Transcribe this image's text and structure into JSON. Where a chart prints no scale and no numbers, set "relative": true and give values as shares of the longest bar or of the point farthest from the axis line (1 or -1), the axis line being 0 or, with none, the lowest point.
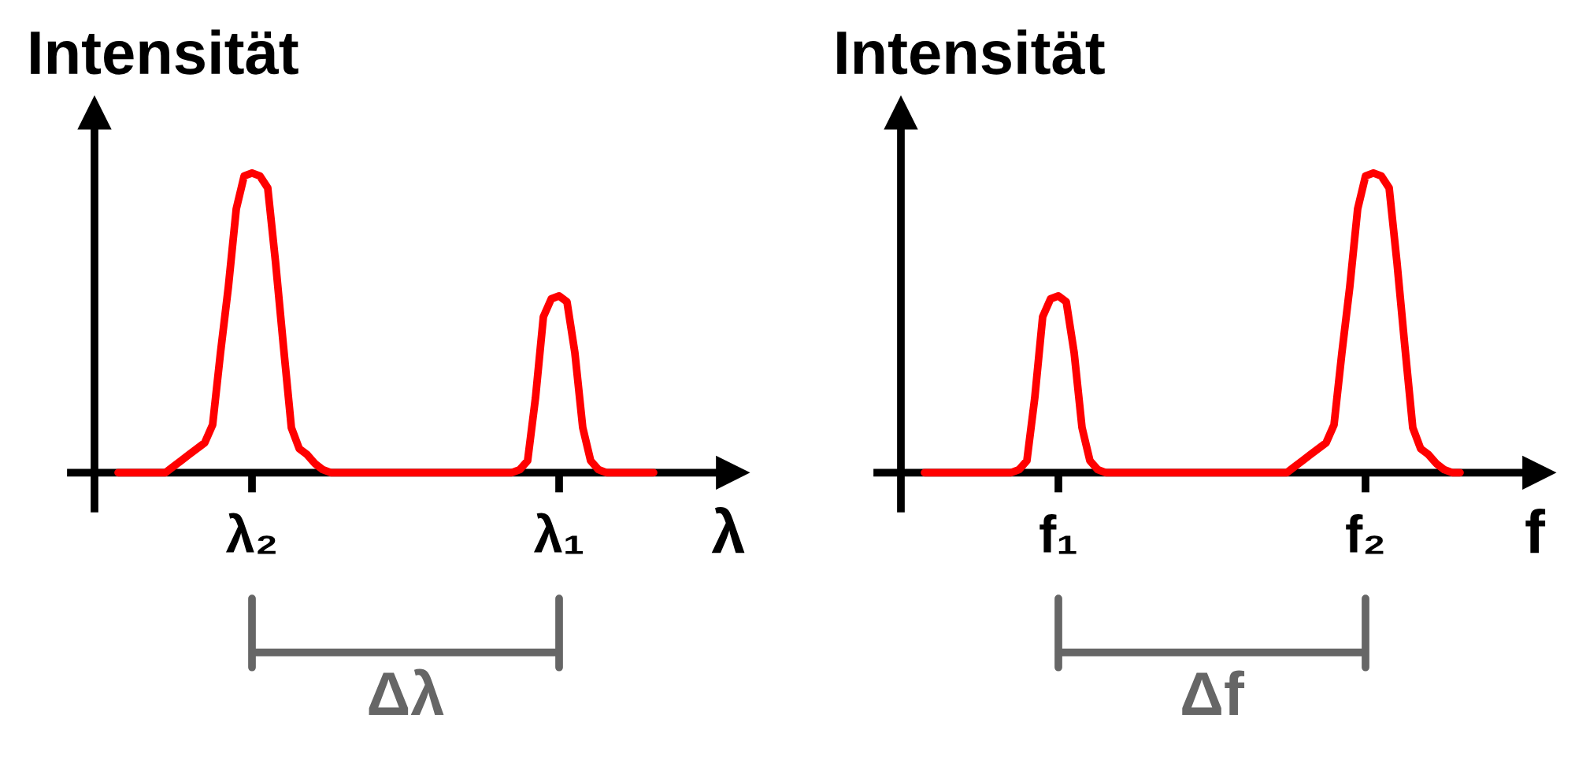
{
  "chart_data": [
    {
      "type": "line",
      "relative": true,
      "xlabel": "λ",
      "ylabel": "Intensität",
      "annotations": [
        "Δλ"
      ],
      "categories": [
        null,
        null,
        null,
        null,
        null,
        null,
        null,
        null,
        null,
        null,
        null,
        null,
        null,
        null,
        null,
        null,
        null,
        "λ₂",
        null,
        null,
        null,
        null,
        null,
        null,
        null,
        null,
        null,
        null,
        null,
        null,
        null,
        null,
        null,
        null,
        null,
        null,
        null,
        null,
        null,
        null,
        null,
        null,
        null,
        null,
        null,
        null,
        null,
        null,
        null,
        null,
        null,
        null,
        null,
        null,
        null,
        null,
        "λ₁",
        null,
        null,
        null,
        null,
        null,
        null,
        null,
        null,
        null,
        null,
        null,
        null
      ],
      "series": [
        {
          "color": "#ff0000",
          "values": [
            0,
            0,
            0,
            0,
            0,
            0,
            0,
            0.02,
            0.04,
            0.06,
            0.08,
            0.1,
            0.16,
            0.4,
            0.62,
            0.88,
            0.99,
            1,
            0.99,
            0.95,
            0.7,
            0.42,
            0.15,
            0.08,
            0.06,
            0.03,
            0.01,
            0,
            0,
            0,
            0,
            0,
            0,
            0,
            0,
            0,
            0,
            0,
            0,
            0,
            0,
            0,
            0,
            0,
            0,
            0,
            0,
            0,
            0,
            0,
            0,
            0.01,
            0.04,
            0.25,
            0.52,
            0.58,
            0.59,
            0.57,
            0.4,
            0.15,
            0.04,
            0.01,
            0,
            0,
            0,
            0,
            0,
            0,
            0
          ]
        }
      ]
    },
    {
      "type": "line",
      "relative": true,
      "xlabel": "f",
      "ylabel": "Intensität",
      "annotations": [
        "Δf"
      ],
      "categories": [
        null,
        null,
        null,
        null,
        null,
        null,
        null,
        null,
        null,
        null,
        null,
        null,
        null,
        null,
        null,
        null,
        null,
        "f₁",
        null,
        null,
        null,
        null,
        null,
        null,
        null,
        null,
        null,
        null,
        null,
        null,
        null,
        null,
        null,
        null,
        null,
        null,
        null,
        null,
        null,
        null,
        null,
        null,
        null,
        null,
        null,
        null,
        null,
        null,
        null,
        null,
        null,
        null,
        null,
        null,
        null,
        null,
        "f₂",
        null,
        null,
        null,
        null,
        null,
        null,
        null,
        null,
        null,
        null,
        null,
        null
      ],
      "series": [
        {
          "color": "#ff0000",
          "values": [
            0,
            0,
            0,
            0,
            0,
            0,
            0,
            0,
            0,
            0,
            0,
            0,
            0.01,
            0.04,
            0.25,
            0.52,
            0.58,
            0.59,
            0.57,
            0.4,
            0.15,
            0.04,
            0.01,
            0,
            0,
            0,
            0,
            0,
            0,
            0,
            0,
            0,
            0,
            0,
            0,
            0,
            0,
            0,
            0,
            0,
            0,
            0,
            0,
            0,
            0,
            0,
            0,
            0.02,
            0.04,
            0.06,
            0.08,
            0.1,
            0.16,
            0.4,
            0.62,
            0.88,
            0.99,
            1,
            0.99,
            0.95,
            0.7,
            0.42,
            0.15,
            0.08,
            0.06,
            0.03,
            0.01,
            0,
            0
          ]
        }
      ]
    }
  ]
}
